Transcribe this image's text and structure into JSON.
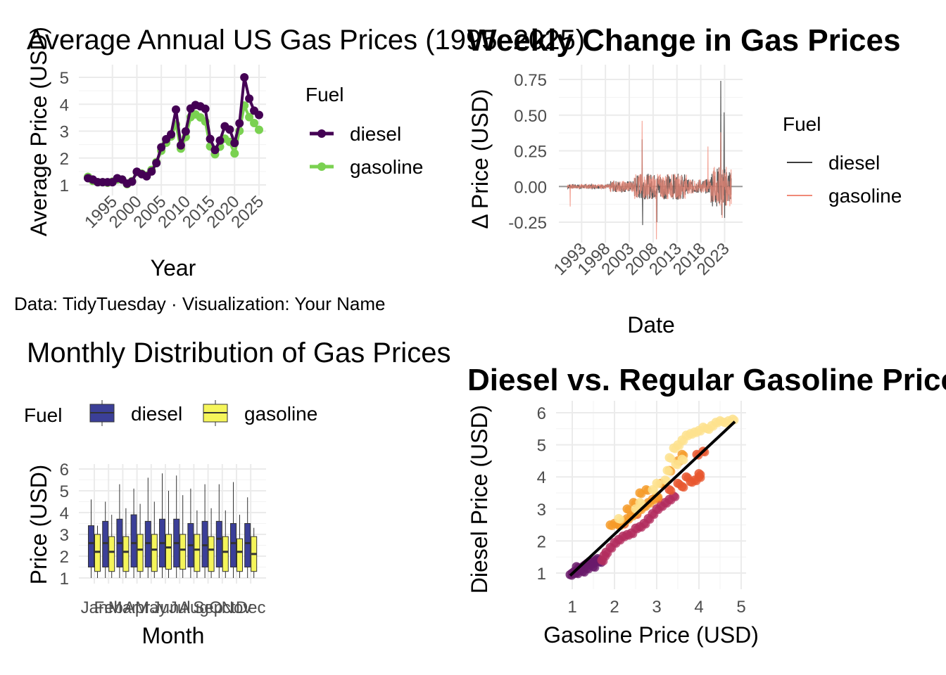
{
  "caption": "Data: TidyTuesday · Visualization: Your Name",
  "colors": {
    "diesel_annual": "#440154",
    "gasoline_annual": "#7ad151",
    "diesel_week": "#3c3c3c",
    "gasoline_week": "#f08a78",
    "diesel_box": "#3b3f98",
    "gasoline_box": "#f5f55a",
    "fit_line": "#000000"
  },
  "chart_data": [
    {
      "type": "line",
      "title": "Average Annual US Gas Prices (1995–2025)",
      "xlabel": "Year",
      "ylabel": "Average Price (USD)",
      "xlim": [
        1990,
        2025
      ],
      "ylim": [
        0.8,
        5.2
      ],
      "xticks": [
        "1995",
        "2000",
        "2005",
        "2010",
        "2015",
        "2020",
        "2025"
      ],
      "yticks": [
        "1",
        "2",
        "3",
        "4",
        "5"
      ],
      "legend_title": "Fuel",
      "legend_position": "right",
      "x": [
        1990,
        1991,
        1992,
        1993,
        1994,
        1995,
        1996,
        1997,
        1998,
        1999,
        2000,
        2001,
        2002,
        2003,
        2004,
        2005,
        2006,
        2007,
        2008,
        2009,
        2010,
        2011,
        2012,
        2013,
        2014,
        2015,
        2016,
        2017,
        2018,
        2019,
        2020,
        2021,
        2022,
        2023,
        2024,
        2025
      ],
      "series": [
        {
          "name": "diesel",
          "values": [
            1.25,
            1.2,
            1.1,
            1.1,
            1.1,
            1.1,
            1.25,
            1.2,
            1.05,
            1.12,
            1.49,
            1.4,
            1.32,
            1.5,
            1.81,
            2.4,
            2.7,
            2.88,
            3.8,
            2.47,
            2.99,
            3.84,
            3.97,
            3.92,
            3.83,
            2.71,
            2.3,
            2.65,
            3.18,
            3.06,
            2.56,
            3.29,
            5.0,
            4.21,
            3.76,
            3.6
          ]
        },
        {
          "name": "gasoline",
          "values": [
            1.3,
            1.15,
            1.1,
            1.1,
            1.08,
            1.12,
            1.2,
            1.2,
            1.03,
            1.14,
            1.48,
            1.42,
            1.35,
            1.56,
            1.85,
            2.27,
            2.57,
            2.8,
            3.25,
            2.35,
            2.78,
            3.52,
            3.62,
            3.51,
            3.36,
            2.43,
            2.14,
            2.42,
            2.72,
            2.6,
            2.17,
            3.01,
            3.95,
            3.52,
            3.3,
            3.05
          ]
        }
      ]
    },
    {
      "type": "line",
      "title": "Weekly Change in Gas Prices",
      "xlabel": "Date",
      "ylabel": "Δ Price (USD)",
      "xlim": [
        1990,
        2025
      ],
      "ylim": [
        -0.38,
        0.78
      ],
      "xticks": [
        "1993",
        "1998",
        "2003",
        "2008",
        "2013",
        "2018",
        "2023"
      ],
      "yticks": [
        "-0.25",
        "0.00",
        "0.25",
        "0.50",
        "0.75"
      ],
      "legend_title": "Fuel",
      "legend_position": "right",
      "series": [
        {
          "name": "diesel",
          "spikes": [
            [
              2005.7,
              0.33
            ],
            [
              2005.8,
              -0.27
            ],
            [
              2008.8,
              -0.25
            ],
            [
              2022.2,
              0.74
            ],
            [
              2022.4,
              -0.2
            ],
            [
              2022.9,
              0.52
            ],
            [
              2023.0,
              -0.22
            ]
          ]
        },
        {
          "name": "gasoline",
          "spikes": [
            [
              1990.6,
              -0.14
            ],
            [
              2005.7,
              0.46
            ],
            [
              2008.7,
              -0.37
            ],
            [
              2019.5,
              0.28
            ],
            [
              2022.2,
              0.38
            ],
            [
              2022.5,
              -0.22
            ]
          ]
        }
      ]
    },
    {
      "type": "box",
      "title": "Monthly Distribution of Gas Prices",
      "xlabel": "Month",
      "ylabel": "Price (USD)",
      "ylim": [
        0.8,
        6.1
      ],
      "yticks": [
        "1",
        "2",
        "3",
        "4",
        "5",
        "6"
      ],
      "legend_title": "Fuel",
      "legend_position": "top",
      "categories": [
        "Jan",
        "Feb",
        "Mar",
        "Apr",
        "May",
        "Jun",
        "Jul",
        "Aug",
        "Sep",
        "Oct",
        "Nov",
        "Dec"
      ],
      "series": [
        {
          "name": "diesel",
          "stats": [
            [
              1.0,
              1.5,
              2.6,
              3.4,
              4.6
            ],
            [
              1.0,
              1.5,
              2.6,
              3.6,
              4.5
            ],
            [
              1.0,
              1.5,
              2.6,
              3.7,
              5.3
            ],
            [
              1.0,
              1.5,
              2.6,
              3.9,
              5.1
            ],
            [
              1.0,
              1.5,
              2.6,
              3.6,
              5.6
            ],
            [
              1.0,
              1.5,
              2.6,
              3.7,
              5.8
            ],
            [
              1.0,
              1.5,
              2.6,
              3.7,
              5.7
            ],
            [
              1.0,
              1.5,
              2.5,
              3.5,
              5.1
            ],
            [
              1.0,
              1.5,
              2.5,
              3.6,
              5.3
            ],
            [
              1.0,
              1.5,
              2.8,
              3.6,
              5.3
            ],
            [
              1.0,
              1.5,
              2.6,
              3.5,
              5.4
            ],
            [
              1.0,
              1.5,
              2.6,
              3.5,
              4.7
            ]
          ]
        },
        {
          "name": "gasoline",
          "stats": [
            [
              1.0,
              1.3,
              2.2,
              3.0,
              3.4
            ],
            [
              1.0,
              1.3,
              2.2,
              2.9,
              3.9
            ],
            [
              1.0,
              1.3,
              2.2,
              2.9,
              4.2
            ],
            [
              1.0,
              1.3,
              2.3,
              3.0,
              4.4
            ],
            [
              1.0,
              1.3,
              2.3,
              3.0,
              4.5
            ],
            [
              1.0,
              1.4,
              2.4,
              3.0,
              5.0
            ],
            [
              1.0,
              1.4,
              2.3,
              3.0,
              4.8
            ],
            [
              1.0,
              1.3,
              2.3,
              3.0,
              4.1
            ],
            [
              1.0,
              1.3,
              2.3,
              2.9,
              4.2
            ],
            [
              1.0,
              1.3,
              2.2,
              2.9,
              4.1
            ],
            [
              1.0,
              1.3,
              2.2,
              2.8,
              3.9
            ],
            [
              1.0,
              1.3,
              2.1,
              2.9,
              3.3
            ]
          ]
        }
      ]
    },
    {
      "type": "scatter",
      "title": "Diesel vs. Regular Gasoline Prices",
      "xlabel": "Gasoline Price (USD)",
      "ylabel": "Diesel Price (USD)",
      "xlim": [
        0.85,
        5.0
      ],
      "ylim": [
        0.8,
        6.2
      ],
      "xticks": [
        "1",
        "2",
        "3",
        "4",
        "5"
      ],
      "yticks": [
        "1",
        "2",
        "3",
        "4",
        "5",
        "6"
      ],
      "fit_line": [
        [
          0.95,
          0.92
        ],
        [
          4.85,
          5.72
        ]
      ],
      "points": [
        [
          0.95,
          0.95,
          0
        ],
        [
          1.0,
          1.0,
          0
        ],
        [
          1.05,
          1.05,
          0
        ],
        [
          1.1,
          1.0,
          0
        ],
        [
          1.15,
          1.1,
          0
        ],
        [
          1.2,
          1.15,
          0
        ],
        [
          1.25,
          1.2,
          0
        ],
        [
          1.3,
          1.25,
          0
        ],
        [
          1.35,
          1.3,
          0
        ],
        [
          1.4,
          1.35,
          0
        ],
        [
          1.45,
          1.3,
          0
        ],
        [
          1.5,
          1.35,
          0
        ],
        [
          1.55,
          1.4,
          0
        ],
        [
          1.6,
          1.45,
          0
        ],
        [
          1.1,
          1.2,
          0
        ],
        [
          1.25,
          1.05,
          0
        ],
        [
          1.35,
          1.15,
          0
        ],
        [
          1.5,
          1.2,
          0
        ],
        [
          1.65,
          1.35,
          0
        ],
        [
          1.7,
          1.4,
          1
        ],
        [
          1.75,
          1.55,
          1
        ],
        [
          1.8,
          1.65,
          1
        ],
        [
          1.9,
          1.8,
          1
        ],
        [
          2.0,
          1.95,
          1
        ],
        [
          2.1,
          2.05,
          1
        ],
        [
          2.2,
          2.15,
          1
        ],
        [
          2.3,
          2.2,
          1
        ],
        [
          2.4,
          2.25,
          1
        ],
        [
          2.5,
          2.4,
          1
        ],
        [
          2.6,
          2.45,
          1
        ],
        [
          2.7,
          2.55,
          1
        ],
        [
          2.8,
          2.7,
          1
        ],
        [
          2.9,
          2.85,
          1
        ],
        [
          3.0,
          3.0,
          1
        ],
        [
          3.1,
          3.1,
          1
        ],
        [
          3.2,
          3.2,
          1
        ],
        [
          3.3,
          3.3,
          1
        ],
        [
          3.4,
          3.4,
          1
        ],
        [
          2.2,
          2.55,
          2
        ],
        [
          2.5,
          2.85,
          2
        ],
        [
          3.0,
          3.35,
          2
        ],
        [
          3.3,
          3.6,
          2
        ],
        [
          3.6,
          3.7,
          2
        ],
        [
          3.7,
          4.0,
          2
        ],
        [
          3.8,
          3.85,
          2
        ],
        [
          3.9,
          3.9,
          2
        ],
        [
          4.0,
          4.0,
          2
        ],
        [
          4.0,
          4.1,
          2
        ],
        [
          4.1,
          4.8,
          2
        ],
        [
          3.95,
          4.7,
          2
        ],
        [
          3.5,
          3.8,
          2
        ],
        [
          2.3,
          2.7,
          3
        ],
        [
          2.5,
          2.9,
          3
        ],
        [
          2.6,
          3.0,
          3
        ],
        [
          2.7,
          3.1,
          3
        ],
        [
          2.8,
          3.2,
          3
        ],
        [
          2.9,
          3.3,
          3
        ],
        [
          3.0,
          3.4,
          3
        ],
        [
          2.4,
          2.8,
          3
        ],
        [
          2.2,
          2.6,
          3
        ],
        [
          2.1,
          2.5,
          3
        ],
        [
          2.0,
          2.55,
          3
        ],
        [
          1.9,
          2.5,
          3
        ],
        [
          2.3,
          3.0,
          3
        ],
        [
          2.45,
          3.2,
          3
        ],
        [
          2.6,
          3.5,
          3
        ],
        [
          2.75,
          3.6,
          3
        ],
        [
          3.1,
          3.8,
          3
        ],
        [
          3.3,
          4.2,
          3
        ],
        [
          3.5,
          4.5,
          3
        ],
        [
          3.6,
          4.7,
          3
        ],
        [
          3.3,
          4.6,
          4
        ],
        [
          3.4,
          4.9,
          4
        ],
        [
          3.5,
          5.0,
          4
        ],
        [
          3.6,
          5.15,
          4
        ],
        [
          3.7,
          5.3,
          4
        ],
        [
          3.8,
          5.35,
          4
        ],
        [
          3.9,
          5.4,
          4
        ],
        [
          4.0,
          5.45,
          4
        ],
        [
          4.1,
          5.55,
          4
        ],
        [
          4.2,
          5.5,
          4
        ],
        [
          4.3,
          5.6,
          4
        ],
        [
          4.4,
          5.7,
          4
        ],
        [
          4.5,
          5.75,
          4
        ],
        [
          4.6,
          5.7,
          4
        ],
        [
          4.7,
          5.75,
          4
        ],
        [
          4.8,
          5.8,
          4
        ],
        [
          3.25,
          4.2,
          4
        ],
        [
          3.45,
          4.4,
          4
        ],
        [
          3.6,
          4.55,
          4
        ],
        [
          3.2,
          3.9,
          4
        ],
        [
          3.0,
          3.8,
          4
        ],
        [
          2.9,
          3.6,
          4
        ],
        [
          2.5,
          3.0,
          4
        ],
        [
          2.6,
          3.2,
          4
        ],
        [
          2.1,
          2.7,
          4
        ]
      ]
    }
  ]
}
